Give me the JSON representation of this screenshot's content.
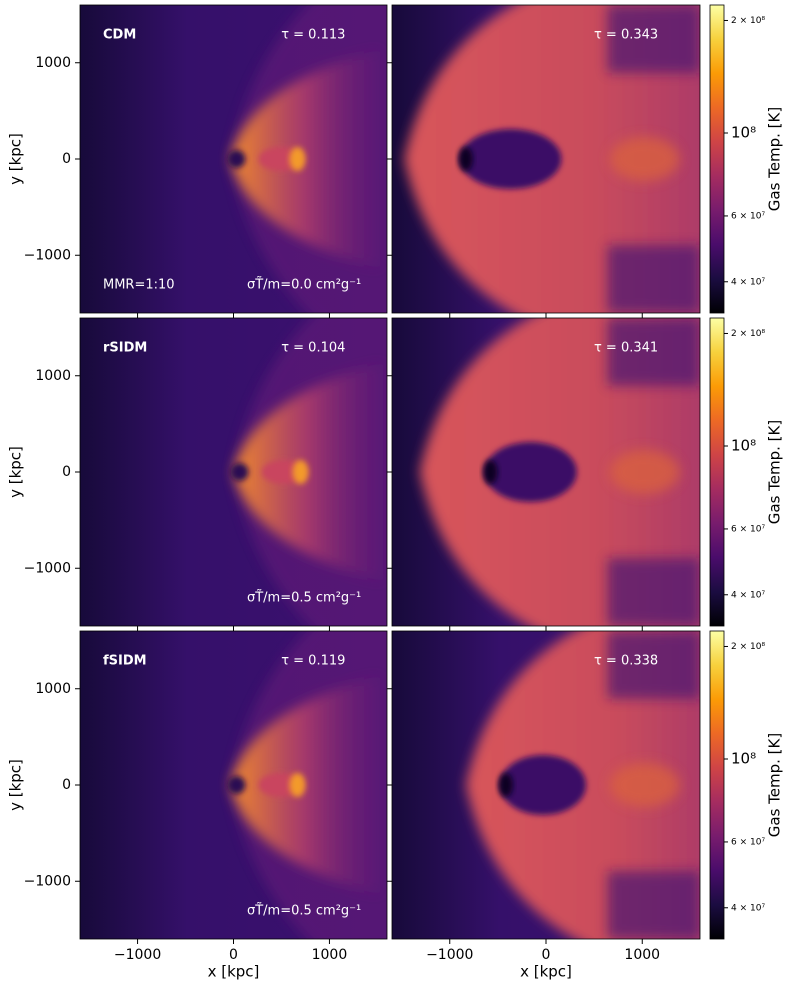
{
  "chart_data": [
    {
      "type": "image",
      "label": "CDM",
      "annotation": "τ = 0.113",
      "note": "MMR=1:10",
      "cross_section": "σT̃/m=0.0 cm²g⁻¹",
      "ylabel": "y [kpc]",
      "xlim": [
        -1600,
        1600
      ],
      "ylim": [
        -1600,
        1600
      ],
      "xticks": [
        -1000,
        0,
        1000
      ],
      "yticks": [
        {
          "value": 1000,
          "label": "1000"
        },
        {
          "value": 0,
          "label": "0"
        },
        {
          "value": -1000,
          "label": "−1000"
        }
      ],
      "show_xticklabels": false,
      "show_yticklabels": true
    },
    {
      "type": "image",
      "annotation": "τ = 0.343",
      "xlim": [
        -1600,
        1600
      ],
      "ylim": [
        -1600,
        1600
      ],
      "xticks": [
        -1000,
        0,
        1000
      ],
      "yticks": [
        1000,
        0,
        -1000
      ],
      "show_xticklabels": false,
      "show_yticklabels": false
    },
    {
      "type": "image",
      "label": "rSIDM",
      "annotation": "τ = 0.104",
      "cross_section": "σT̃/m=0.5 cm²g⁻¹",
      "ylabel": "y [kpc]",
      "xlim": [
        -1600,
        1600
      ],
      "ylim": [
        -1600,
        1600
      ],
      "xticks": [
        -1000,
        0,
        1000
      ],
      "yticks": [
        {
          "value": 1000,
          "label": "1000"
        },
        {
          "value": 0,
          "label": "0"
        },
        {
          "value": -1000,
          "label": "−1000"
        }
      ],
      "show_xticklabels": false,
      "show_yticklabels": true
    },
    {
      "type": "image",
      "annotation": "τ = 0.341",
      "xlim": [
        -1600,
        1600
      ],
      "ylim": [
        -1600,
        1600
      ],
      "xticks": [
        -1000,
        0,
        1000
      ],
      "yticks": [
        1000,
        0,
        -1000
      ],
      "show_xticklabels": false,
      "show_yticklabels": false
    },
    {
      "type": "image",
      "label": "fSIDM",
      "annotation": "τ = 0.119",
      "cross_section": "σT̃/m=0.5 cm²g⁻¹",
      "ylabel": "y [kpc]",
      "xlabel": "x [kpc]",
      "xlim": [
        -1600,
        1600
      ],
      "ylim": [
        -1600,
        1600
      ],
      "xticks": [
        {
          "value": -1000,
          "label": "−1000"
        },
        {
          "value": 0,
          "label": "0"
        },
        {
          "value": 1000,
          "label": "1000"
        }
      ],
      "yticks": [
        {
          "value": 1000,
          "label": "1000"
        },
        {
          "value": 0,
          "label": "0"
        },
        {
          "value": -1000,
          "label": "−1000"
        }
      ],
      "show_xticklabels": true,
      "show_yticklabels": true
    },
    {
      "type": "image",
      "annotation": "τ = 0.338",
      "xlabel": "x [kpc]",
      "xlim": [
        -1600,
        1600
      ],
      "ylim": [
        -1600,
        1600
      ],
      "xticks": [
        {
          "value": -1000,
          "label": "−1000"
        },
        {
          "value": 0,
          "label": "0"
        },
        {
          "value": 1000,
          "label": "1000"
        }
      ],
      "yticks": [
        1000,
        0,
        -1000
      ],
      "show_xticklabels": true,
      "show_yticklabels": false
    },
    {
      "type": "colorbar",
      "label": "Gas Temp. [K]",
      "log": true,
      "clim": [
        33000000,
        220000000
      ],
      "ticks": [
        {
          "value": 40000000,
          "label": "4 × 10⁷"
        },
        {
          "value": 60000000,
          "label": "6 × 10⁷"
        },
        {
          "value": 100000000,
          "label": "10⁸"
        },
        {
          "value": 200000000,
          "label": "2 × 10⁸"
        }
      ],
      "colors": [
        "#000004",
        "#1b0c41",
        "#4a0c6b",
        "#781c6d",
        "#a52c60",
        "#cf4446",
        "#ed6925",
        "#fb9b06",
        "#f7d13d",
        "#fcffa4"
      ]
    },
    {
      "type": "colorbar",
      "label": "Gas Temp. [K]",
      "log": true,
      "clim": [
        33000000,
        220000000
      ],
      "ticks": [
        {
          "value": 40000000,
          "label": "4 × 10⁷"
        },
        {
          "value": 60000000,
          "label": "6 × 10⁷"
        },
        {
          "value": 100000000,
          "label": "10⁸"
        },
        {
          "value": 200000000,
          "label": "2 × 10⁸"
        }
      ],
      "colors": [
        "#000004",
        "#1b0c41",
        "#4a0c6b",
        "#781c6d",
        "#a52c60",
        "#cf4446",
        "#ed6925",
        "#fb9b06",
        "#f7d13d",
        "#fcffa4"
      ]
    },
    {
      "type": "colorbar",
      "label": "Gas Temp. [K]",
      "log": true,
      "clim": [
        33000000,
        220000000
      ],
      "ticks": [
        {
          "value": 40000000,
          "label": "4 × 10⁷"
        },
        {
          "value": 60000000,
          "label": "6 × 10⁷"
        },
        {
          "value": 100000000,
          "label": "10⁸"
        },
        {
          "value": 200000000,
          "label": "2 × 10⁸"
        }
      ],
      "colors": [
        "#000004",
        "#1b0c41",
        "#4a0c6b",
        "#781c6d",
        "#a52c60",
        "#cf4446",
        "#ed6925",
        "#fb9b06",
        "#f7d13d",
        "#fcffa4"
      ]
    }
  ]
}
